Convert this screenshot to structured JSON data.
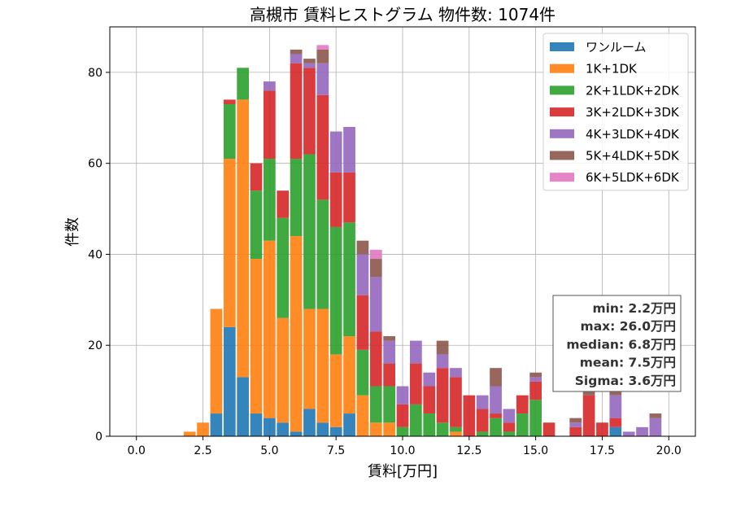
{
  "chart_data": {
    "type": "bar",
    "stacked": true,
    "title": "高槻市 賃料ヒストグラム 物件数: 1074件",
    "xlabel": "賃料[万円]",
    "ylabel": "件数",
    "xlim": [
      -1.0,
      21.0
    ],
    "ylim": [
      0,
      90
    ],
    "xticks": [
      "0.0",
      "2.5",
      "5.0",
      "7.5",
      "10.0",
      "12.5",
      "15.0",
      "17.5",
      "20.0"
    ],
    "yticks": [
      "0",
      "20",
      "40",
      "60",
      "80"
    ],
    "bin_width": 0.5,
    "grid": true,
    "legend": "top-right",
    "x": [
      2.0,
      2.5,
      3.0,
      3.5,
      4.0,
      4.5,
      5.0,
      5.5,
      6.0,
      6.5,
      7.0,
      7.5,
      8.0,
      8.5,
      9.0,
      9.5,
      10.0,
      10.5,
      11.0,
      11.5,
      12.0,
      12.5,
      13.0,
      13.5,
      14.0,
      14.5,
      15.0,
      15.5,
      16.0,
      16.5,
      17.0,
      17.5,
      18.0,
      18.5,
      19.0,
      19.5,
      20.0
    ],
    "series": [
      {
        "name": "ワンルーム",
        "color": "#1f77b4",
        "values": [
          0,
          0,
          5,
          24,
          13,
          5,
          4,
          3,
          1,
          6,
          3,
          2,
          5,
          0,
          0,
          0,
          0,
          0,
          0,
          0,
          0,
          0,
          0,
          0,
          0,
          0,
          0,
          0,
          0,
          0,
          0,
          0,
          2,
          0,
          0,
          0,
          0
        ]
      },
      {
        "name": "1K+1DK",
        "color": "#ff7f0e",
        "values": [
          1,
          3,
          23,
          37,
          61,
          34,
          39,
          23,
          43,
          22,
          25,
          16,
          17,
          9,
          3,
          3,
          0,
          0,
          0,
          0,
          1,
          0,
          0,
          0,
          0,
          0,
          0,
          0,
          0,
          0,
          0,
          0,
          0,
          0,
          0,
          0,
          0
        ]
      },
      {
        "name": "2K+1LDK+2DK",
        "color": "#2ca02c",
        "values": [
          0,
          0,
          0,
          12,
          7,
          15,
          18,
          22,
          17,
          34,
          24,
          28,
          25,
          10,
          8,
          8,
          2,
          7,
          5,
          3,
          1,
          0,
          1,
          4,
          1,
          5,
          8,
          0,
          0,
          0,
          0,
          0,
          0,
          0,
          0,
          0,
          0
        ]
      },
      {
        "name": "3K+2LDK+3DK",
        "color": "#d62728",
        "values": [
          0,
          0,
          0,
          1,
          0,
          6,
          15,
          6,
          21,
          19,
          23,
          12,
          11,
          12,
          12,
          5,
          5,
          9,
          6,
          12,
          11,
          9,
          5,
          1,
          2,
          4,
          4,
          3,
          0,
          2,
          9,
          3,
          2,
          0,
          0,
          0,
          0
        ]
      },
      {
        "name": "4K+3LDK+4DK",
        "color": "#9467bd",
        "values": [
          0,
          0,
          0,
          0,
          0,
          0,
          2,
          0,
          2,
          1,
          7,
          9,
          10,
          9,
          12,
          5,
          4,
          5,
          3,
          3,
          2,
          0,
          3,
          6,
          3,
          0,
          1,
          0,
          0,
          1,
          0,
          0,
          5,
          1,
          2,
          4,
          0
        ]
      },
      {
        "name": "5K+4LDK+5DK",
        "color": "#8c564b",
        "values": [
          0,
          0,
          0,
          0,
          0,
          0,
          0,
          0,
          1,
          1,
          3,
          0,
          0,
          3,
          4,
          1,
          0,
          0,
          0,
          3,
          0,
          0,
          0,
          4,
          0,
          0,
          1,
          0,
          0,
          1,
          1,
          0,
          1,
          0,
          0,
          1,
          0
        ]
      },
      {
        "name": "6K+5LDK+6DK",
        "color": "#e377c2",
        "values": [
          0,
          0,
          0,
          0,
          0,
          0,
          0,
          0,
          0,
          0,
          1,
          0,
          0,
          0,
          2,
          0,
          0,
          0,
          0,
          0,
          0,
          0,
          0,
          0,
          0,
          0,
          0,
          0,
          0,
          0,
          0,
          0,
          0,
          0,
          0,
          0,
          0
        ]
      }
    ],
    "stats": [
      "min: 2.2万円",
      "max: 26.0万円",
      "median: 6.8万円",
      "mean: 7.5万円",
      "Sigma: 3.6万円"
    ]
  }
}
